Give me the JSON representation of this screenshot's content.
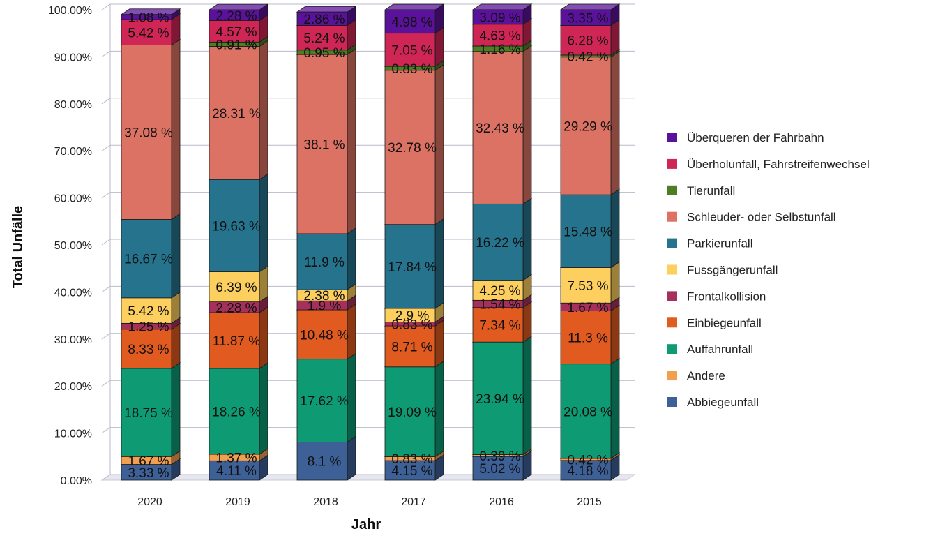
{
  "chart_data": {
    "type": "bar",
    "stacked": true,
    "three_d": true,
    "xlabel": "Jahr",
    "ylabel": "Total Unfälle",
    "ylim": [
      0,
      100
    ],
    "ytick_labels": [
      "0.00%",
      "10.00%",
      "20.00%",
      "30.00%",
      "40.00%",
      "50.00%",
      "60.00%",
      "70.00%",
      "80.00%",
      "90.00%",
      "100.00%"
    ],
    "grid": true,
    "legend_position": "right",
    "categories": [
      "2020",
      "2019",
      "2018",
      "2017",
      "2016",
      "2015"
    ],
    "series": [
      {
        "name": "Abbiegeunfall",
        "color": "#3d6197",
        "values": [
          3.33,
          4.11,
          8.1,
          4.15,
          5.02,
          4.18
        ],
        "labels": [
          "3.33 %",
          "4.11 %",
          "8.1 %",
          "4.15 %",
          "5.02 %",
          "4.18 %"
        ]
      },
      {
        "name": "Andere",
        "color": "#f1a04f",
        "values": [
          1.67,
          1.37,
          0.0,
          0.83,
          0.39,
          0.42
        ],
        "labels": [
          "1.67 %",
          "1.37 %",
          "",
          "0.83 %",
          "0.39 %",
          "0.42 %"
        ]
      },
      {
        "name": "Auffahrunfall",
        "color": "#0e9b74",
        "values": [
          18.75,
          18.26,
          17.62,
          19.09,
          23.94,
          20.08
        ],
        "labels": [
          "18.75 %",
          "18.26 %",
          "17.62 %",
          "19.09 %",
          "23.94 %",
          "20.08 %"
        ]
      },
      {
        "name": "Einbiegeunfall",
        "color": "#e15a1f",
        "values": [
          8.33,
          11.87,
          10.48,
          8.71,
          7.34,
          11.3
        ],
        "labels": [
          "8.33 %",
          "11.87 %",
          "10.48 %",
          "8.71 %",
          "7.34 %",
          "11.3 %"
        ]
      },
      {
        "name": "Frontalkollision",
        "color": "#a5305c",
        "values": [
          1.25,
          2.28,
          1.9,
          0.83,
          1.54,
          1.67
        ],
        "labels": [
          "1.25 %",
          "2.28 %",
          "1.9 %",
          "0.83 %",
          "1.54 %",
          "1.67 %"
        ]
      },
      {
        "name": "Fussgängerunfall",
        "color": "#fccf5e",
        "values": [
          5.42,
          6.39,
          2.38,
          2.9,
          4.25,
          7.53
        ],
        "labels": [
          "5.42 %",
          "6.39 %",
          "2.38 %",
          "2.9 %",
          "4.25 %",
          "7.53 %"
        ]
      },
      {
        "name": "Parkierunfall",
        "color": "#26738e",
        "values": [
          16.67,
          19.63,
          11.9,
          17.84,
          16.22,
          15.48
        ],
        "labels": [
          "16.67 %",
          "19.63 %",
          "11.9 %",
          "17.84 %",
          "16.22 %",
          "15.48 %"
        ]
      },
      {
        "name": "Schleuder- oder Selbstunfall",
        "color": "#db7263",
        "values": [
          37.08,
          28.31,
          38.1,
          32.78,
          32.43,
          29.29
        ],
        "labels": [
          "37.08 %",
          "28.31 %",
          "38.1 %",
          "32.78 %",
          "32.43 %",
          "29.29 %"
        ]
      },
      {
        "name": "Tierunfall",
        "color": "#4e7d24",
        "values": [
          0.0,
          0.91,
          0.95,
          0.83,
          1.16,
          0.42
        ],
        "labels": [
          "",
          "0.91 %",
          "0.95 %",
          "0.83 %",
          "1.16 %",
          "0.42 %"
        ]
      },
      {
        "name": "Überholunfall, Fahrstreifenwechsel",
        "color": "#cf2656",
        "values": [
          5.42,
          4.57,
          5.24,
          7.05,
          4.63,
          6.28
        ],
        "labels": [
          "5.42 %",
          "4.57 %",
          "5.24 %",
          "7.05 %",
          "4.63 %",
          "6.28 %"
        ]
      },
      {
        "name": "Überqueren der Fahrbahn",
        "color": "#5a129a",
        "values": [
          1.08,
          2.28,
          2.86,
          4.98,
          3.09,
          3.35
        ],
        "labels": [
          "1.08 %",
          "2.28 %",
          "2.86 %",
          "4.98 %",
          "3.09 %",
          "3.35 %"
        ]
      }
    ]
  }
}
